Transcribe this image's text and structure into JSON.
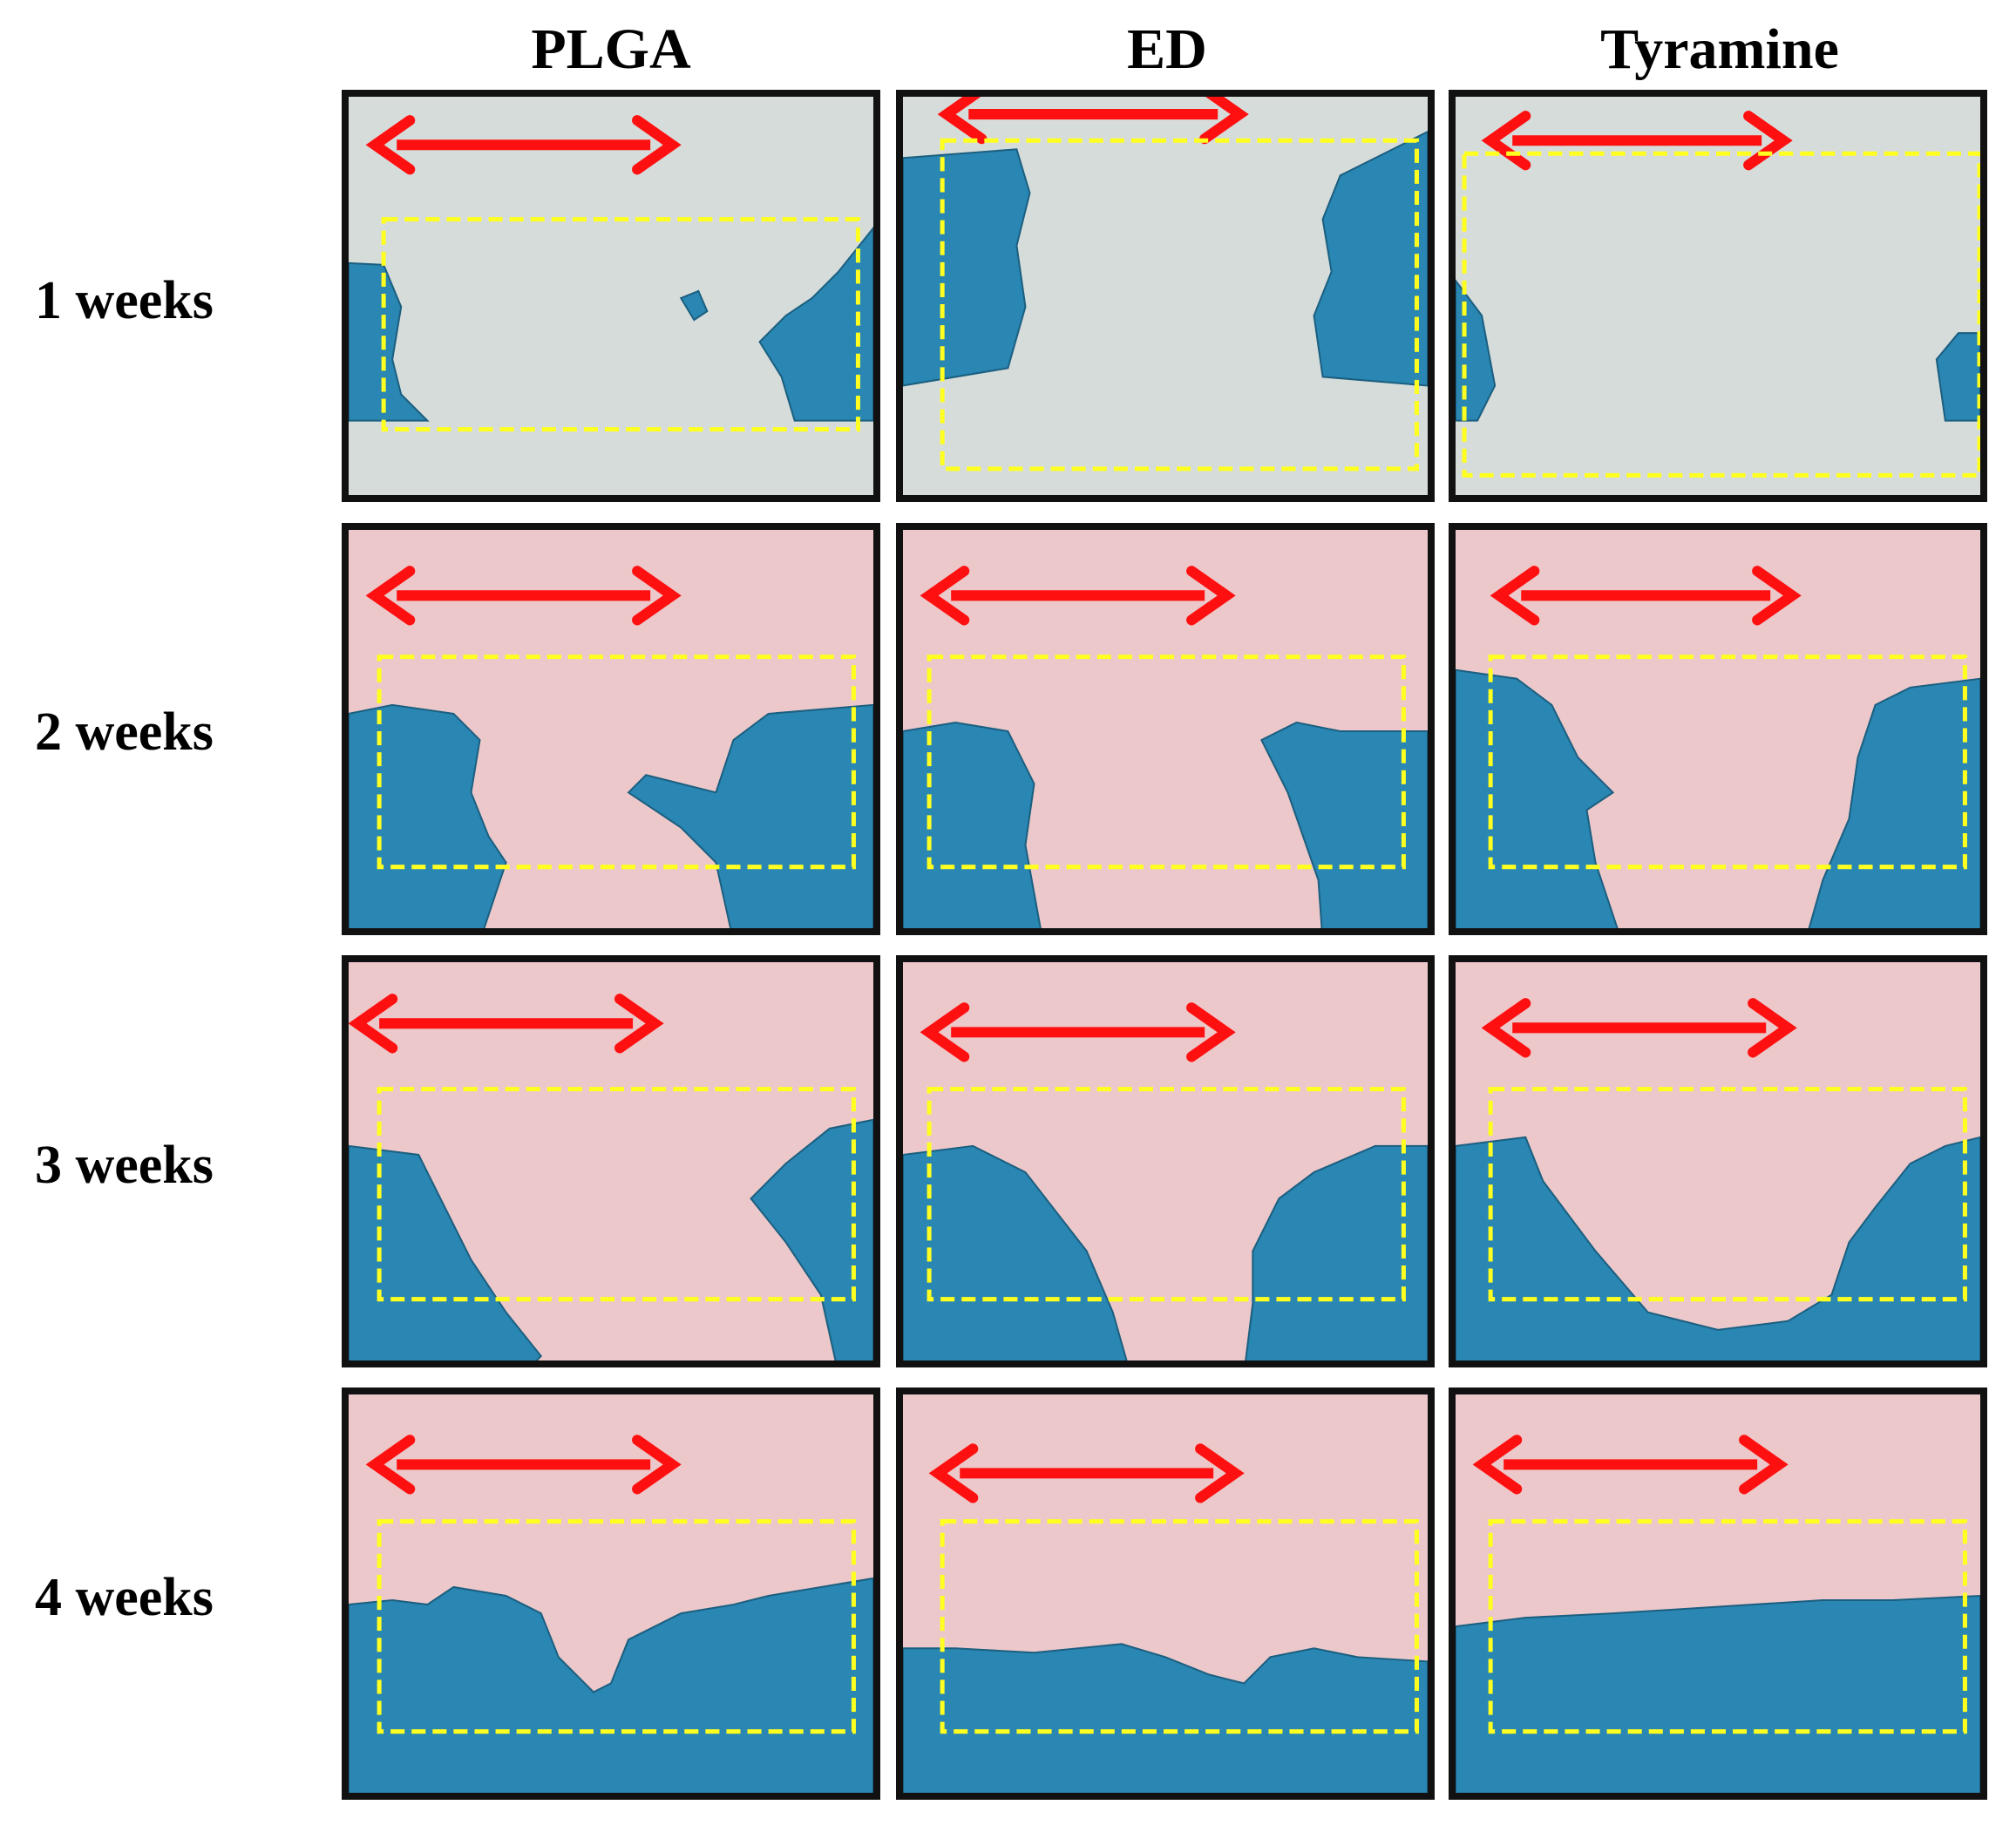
{
  "columns": [
    {
      "label": "PLGA"
    },
    {
      "label": "ED"
    },
    {
      "label": "Tyramine"
    }
  ],
  "rows": [
    {
      "label": "1 weeks"
    },
    {
      "label": "2 weeks"
    },
    {
      "label": "3 weeks"
    },
    {
      "label": "4 weeks"
    }
  ],
  "colors": {
    "cartilage_blue": "#2a86b2",
    "background_week1": "#d6dcda",
    "background_later": "#ecc8ca",
    "arrow_red": "#ff1010",
    "roi_yellow": "#ffff20",
    "frame": "#111111"
  }
}
